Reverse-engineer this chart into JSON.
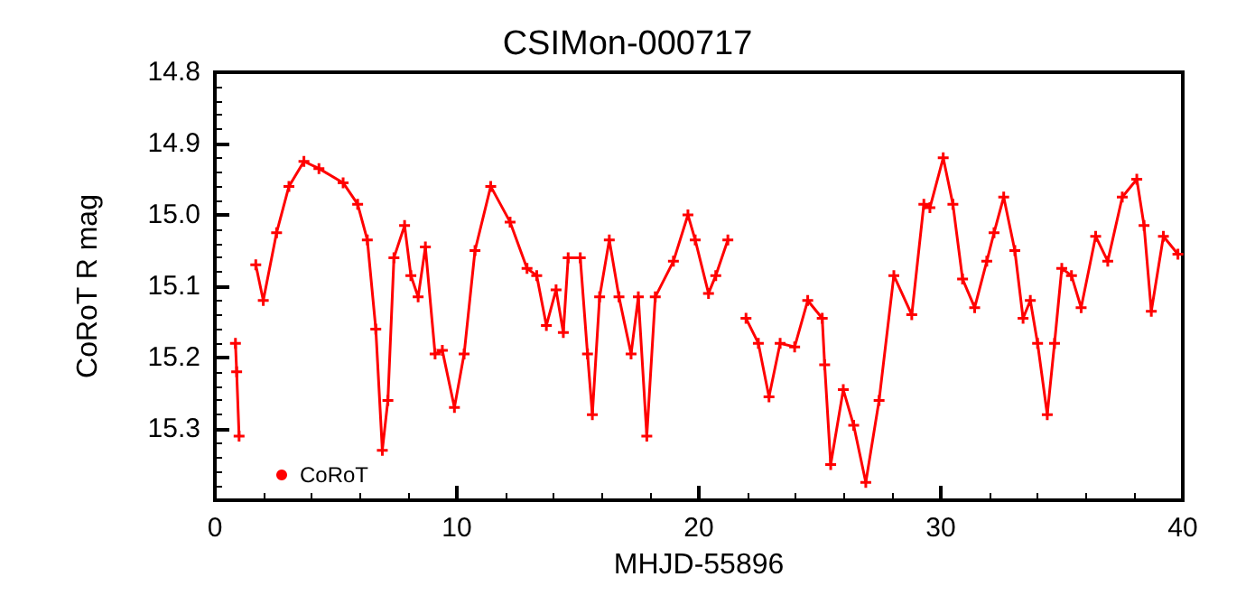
{
  "chart_data": {
    "type": "line",
    "title": "CSIMon-000717",
    "xlabel": "MHJD-55896",
    "ylabel": "CoRoT R mag",
    "xlim": [
      0,
      40
    ],
    "xticks": [
      0,
      10,
      20,
      30,
      40
    ],
    "ylim": [
      15.4,
      14.8
    ],
    "yticks": [
      14.8,
      14.9,
      {
        "value": 15.0,
        "label": "15.0"
      },
      15.1,
      15.2,
      15.3
    ],
    "grid": false,
    "legend": "bottom left",
    "marker": "cross",
    "line_style": "solid",
    "series": [
      {
        "name": "CoRoT",
        "color": "#ff0000",
        "x": [
          0.85,
          0.9,
          1.0,
          1.3,
          1.69,
          2.0,
          2.55,
          3.06,
          3.68,
          4.3,
          5.3,
          5.9,
          6.3,
          6.65,
          6.92,
          7.15,
          7.4,
          7.84,
          8.1,
          8.4,
          8.7,
          9.1,
          9.4,
          9.9,
          10.3,
          10.75,
          11.4,
          12.2,
          12.9,
          13.3,
          13.7,
          14.1,
          14.4,
          14.6,
          15.1,
          15.4,
          15.6,
          15.9,
          16.3,
          16.7,
          17.2,
          17.5,
          17.85,
          18.2,
          18.95,
          19.55,
          19.85,
          20.4,
          20.7,
          21.2,
          21.6,
          21.95,
          22.46,
          22.9,
          23.36,
          23.96,
          24.5,
          25.1,
          25.2,
          25.45,
          25.97,
          26.4,
          26.9,
          27.45,
          28.06,
          28.8,
          29.3,
          29.55,
          30.1,
          30.5,
          30.9,
          31.4,
          31.9,
          32.2,
          32.6,
          33.06,
          33.4,
          33.7,
          34.0,
          34.4,
          34.7,
          35.0,
          35.4,
          35.8,
          36.4,
          36.9,
          37.5,
          38.1,
          38.4,
          38.7,
          39.2,
          39.8
        ],
        "values": [
          15.18,
          15.22,
          15.31,
          null,
          15.07,
          15.12,
          15.025,
          14.96,
          14.925,
          14.935,
          14.955,
          14.985,
          15.035,
          15.16,
          15.33,
          15.26,
          15.06,
          15.015,
          15.085,
          15.115,
          15.045,
          15.195,
          15.19,
          15.27,
          15.195,
          15.05,
          14.96,
          15.01,
          15.075,
          15.085,
          15.155,
          15.105,
          15.165,
          15.06,
          15.06,
          15.195,
          15.28,
          15.115,
          15.035,
          15.115,
          15.195,
          15.115,
          15.31,
          15.115,
          15.065,
          15.0,
          15.035,
          15.11,
          15.085,
          15.035,
          null,
          15.145,
          15.18,
          15.255,
          15.18,
          15.185,
          15.12,
          15.145,
          15.21,
          15.35,
          15.245,
          15.295,
          15.375,
          15.26,
          15.085,
          15.14,
          14.985,
          14.99,
          14.92,
          14.985,
          15.09,
          15.13,
          15.065,
          15.025,
          14.975,
          15.05,
          15.145,
          15.12,
          15.18,
          15.28,
          15.18,
          15.075,
          15.085,
          15.13,
          15.03,
          15.065,
          14.975,
          14.95,
          15.015,
          15.135,
          15.03,
          15.055
        ]
      }
    ]
  }
}
